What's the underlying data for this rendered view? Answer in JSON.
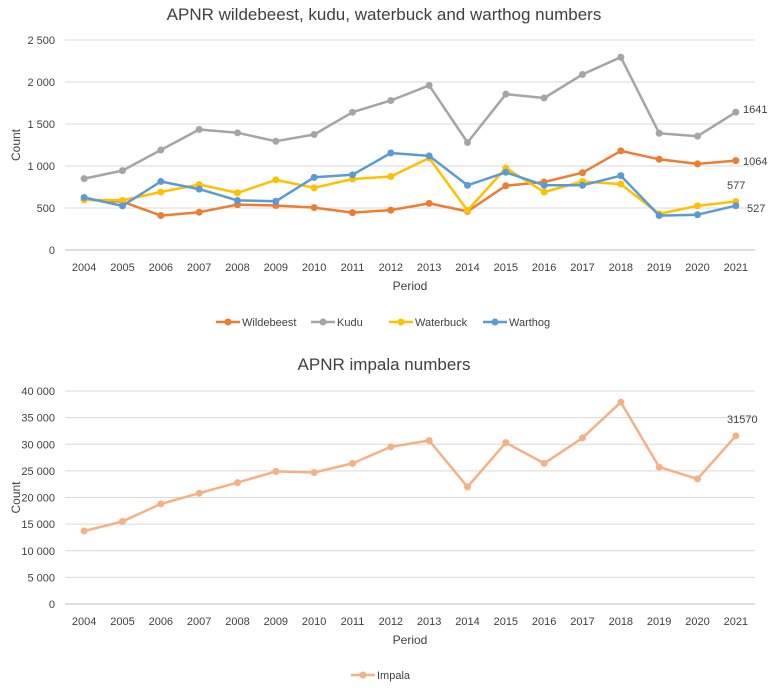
{
  "chart_data": [
    {
      "type": "line",
      "title": "APNR wildebeest, kudu, waterbuck and warthog numbers",
      "xlabel": "Period",
      "ylabel": "Count",
      "ylim": [
        0,
        2500
      ],
      "yticks": [
        "0",
        "500",
        "1 000",
        "1 500",
        "2 000",
        "2 500"
      ],
      "grid": true,
      "legend": "bottom",
      "categories": [
        "2004",
        "2005",
        "2006",
        "2007",
        "2008",
        "2009",
        "2010",
        "2011",
        "2012",
        "2013",
        "2014",
        "2015",
        "2016",
        "2017",
        "2018",
        "2019",
        "2020",
        "2021"
      ],
      "series": [
        {
          "name": "Wildebeest",
          "color": "#ed7d31",
          "values": [
            600,
            575,
            410,
            450,
            540,
            530,
            505,
            445,
            475,
            555,
            460,
            765,
            810,
            920,
            1180,
            1080,
            1025,
            1064
          ]
        },
        {
          "name": "Kudu",
          "color": "#a5a5a5",
          "values": [
            850,
            945,
            1190,
            1435,
            1395,
            1295,
            1375,
            1640,
            1780,
            1960,
            1280,
            1855,
            1810,
            2090,
            2295,
            1390,
            1355,
            1641
          ]
        },
        {
          "name": "Waterbuck",
          "color": "#ffc000",
          "values": [
            600,
            590,
            690,
            780,
            680,
            835,
            740,
            845,
            875,
            1095,
            470,
            975,
            690,
            815,
            785,
            430,
            525,
            577
          ]
        },
        {
          "name": "Warthog",
          "color": "#5b9bd5",
          "values": [
            625,
            525,
            815,
            725,
            590,
            580,
            865,
            895,
            1155,
            1120,
            770,
            925,
            770,
            770,
            885,
            410,
            420,
            527
          ]
        }
      ],
      "annotations": [
        {
          "series": "Kudu",
          "text": "1641"
        },
        {
          "series": "Wildebeest",
          "text": "1064"
        },
        {
          "series": "Waterbuck",
          "text": "577"
        },
        {
          "series": "Warthog",
          "text": "527"
        }
      ]
    },
    {
      "type": "line",
      "title": "APNR impala numbers",
      "xlabel": "Period",
      "ylabel": "Count",
      "ylim": [
        0,
        40000
      ],
      "yticks": [
        "0",
        "5 000",
        "10 000",
        "15 000",
        "20 000",
        "25 000",
        "30 000",
        "35 000",
        "40 000"
      ],
      "grid": true,
      "legend": "bottom",
      "categories": [
        "2004",
        "2005",
        "2006",
        "2007",
        "2008",
        "2009",
        "2010",
        "2011",
        "2012",
        "2013",
        "2014",
        "2015",
        "2016",
        "2017",
        "2018",
        "2019",
        "2020",
        "2021"
      ],
      "series": [
        {
          "name": "Impala",
          "color": "#f4b183",
          "values": [
            13700,
            15500,
            18800,
            20800,
            22800,
            24900,
            24700,
            26400,
            29500,
            30700,
            22000,
            30300,
            26400,
            31200,
            37900,
            25700,
            23500,
            31570
          ]
        }
      ],
      "annotations": [
        {
          "series": "Impala",
          "text": "31570"
        }
      ]
    }
  ]
}
